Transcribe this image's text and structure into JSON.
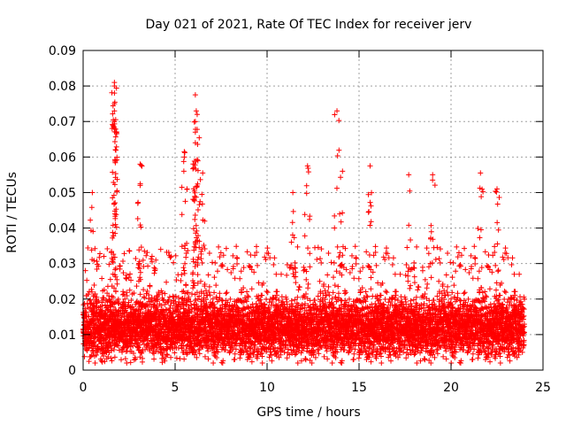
{
  "chart_data": {
    "type": "scatter",
    "title": "Day 021 of 2021, Rate Of TEC Index for receiver jerv",
    "xlabel": "GPS time / hours",
    "ylabel": "ROTI / TECUs",
    "xlim": [
      0,
      25
    ],
    "ylim": [
      0,
      0.09
    ],
    "xticks": [
      0,
      5,
      10,
      15,
      20,
      25
    ],
    "yticks": [
      0,
      0.01,
      0.02,
      0.03,
      0.04,
      0.05,
      0.06,
      0.07,
      0.08,
      0.09
    ],
    "xtick_labels": [
      "0",
      "5",
      "10",
      "15",
      "20",
      "25"
    ],
    "ytick_labels": [
      "0",
      "0.01",
      "0.02",
      "0.03",
      "0.04",
      "0.05",
      "0.06",
      "0.07",
      "0.08",
      "0.09"
    ],
    "grid": true,
    "marker": "+",
    "color": "#ff0000",
    "notable_points": [
      {
        "x": 1.7,
        "y": 0.081
      },
      {
        "x": 1.7,
        "y": 0.08
      },
      {
        "x": 1.7,
        "y": 0.078
      },
      {
        "x": 1.7,
        "y": 0.075
      },
      {
        "x": 1.7,
        "y": 0.073
      },
      {
        "x": 1.7,
        "y": 0.07
      },
      {
        "x": 1.7,
        "y": 0.068
      },
      {
        "x": 6.1,
        "y": 0.0775
      },
      {
        "x": 6.15,
        "y": 0.073
      },
      {
        "x": 6.2,
        "y": 0.072
      },
      {
        "x": 6.1,
        "y": 0.07
      },
      {
        "x": 6.1,
        "y": 0.067
      },
      {
        "x": 6.1,
        "y": 0.064
      },
      {
        "x": 5.5,
        "y": 0.0615
      },
      {
        "x": 5.5,
        "y": 0.06
      },
      {
        "x": 13.8,
        "y": 0.073
      },
      {
        "x": 3.1,
        "y": 0.058
      },
      {
        "x": 3.1,
        "y": 0.052
      },
      {
        "x": 12.2,
        "y": 0.0575
      },
      {
        "x": 15.6,
        "y": 0.0575
      },
      {
        "x": 21.6,
        "y": 0.0555
      },
      {
        "x": 19.0,
        "y": 0.055
      },
      {
        "x": 17.7,
        "y": 0.055
      },
      {
        "x": 22.5,
        "y": 0.051
      },
      {
        "x": 14.1,
        "y": 0.056
      },
      {
        "x": 6.5,
        "y": 0.0555
      },
      {
        "x": 0.5,
        "y": 0.05
      },
      {
        "x": 11.4,
        "y": 0.05
      }
    ],
    "dense_band": {
      "x_range": [
        0,
        24
      ],
      "y_center": 0.012,
      "y_range": [
        0.002,
        0.03
      ]
    }
  }
}
